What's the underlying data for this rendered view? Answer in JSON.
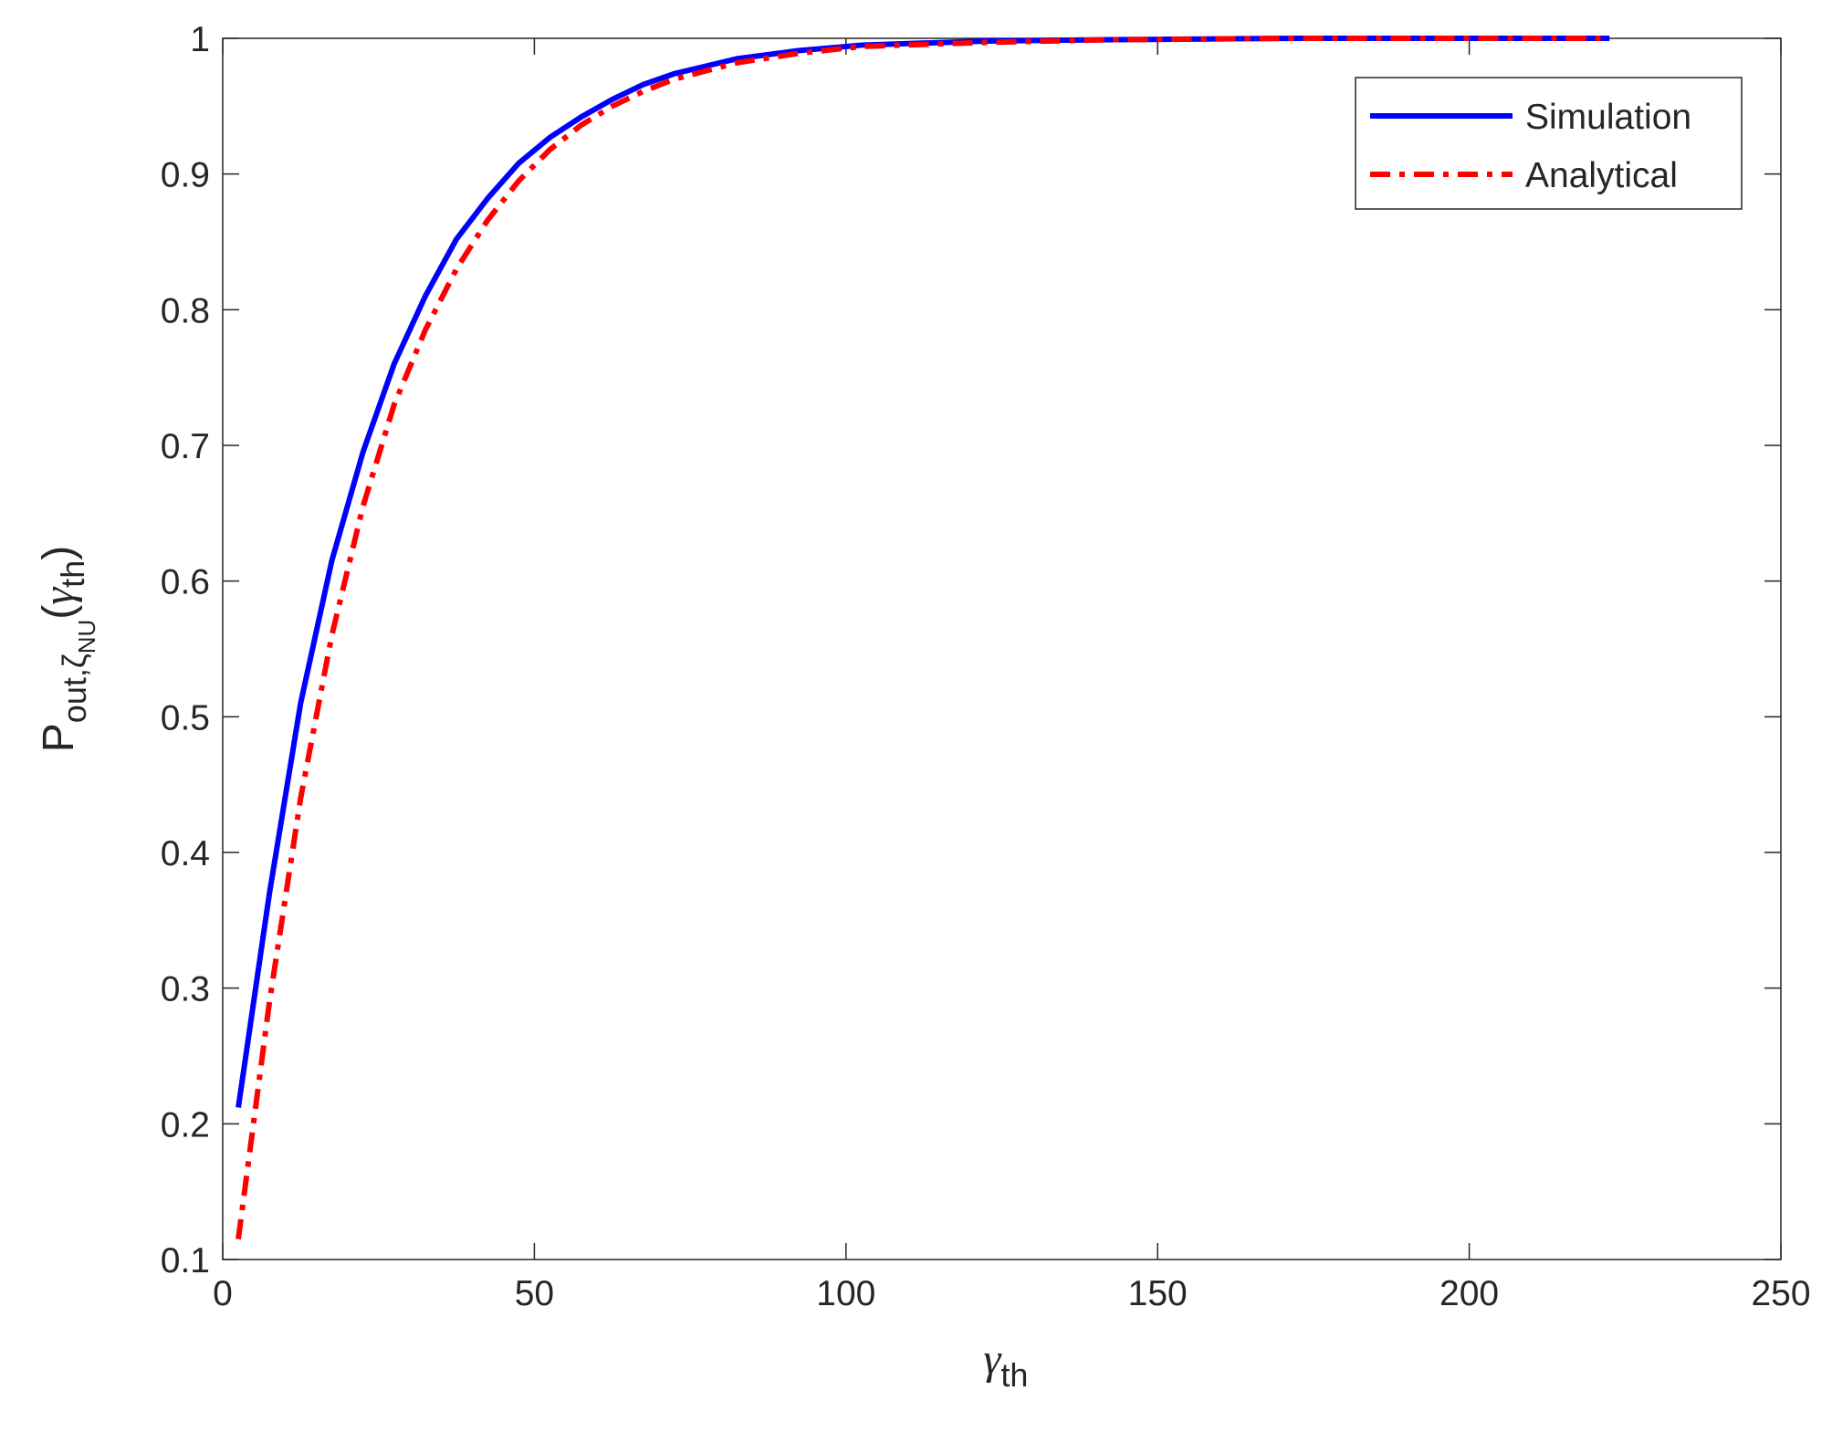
{
  "chart_data": {
    "type": "line",
    "xlabel": [
      "γ",
      "th"
    ],
    "ylabel": [
      "P",
      "out,ζ",
      "NU",
      "(",
      "γ",
      "th",
      ")"
    ],
    "x": [
      2.5,
      7.5,
      12.5,
      17.5,
      22.5,
      27.5,
      32.5,
      37.5,
      42.5,
      47.5,
      52.5,
      57.5,
      62.5,
      67.5,
      72.5,
      82.5,
      92.5,
      102.5,
      122.5,
      142.5,
      172.5,
      222.5
    ],
    "series": [
      {
        "name": "Simulation",
        "color": "#0000ff",
        "dash": "solid",
        "values": [
          0.212,
          0.37,
          0.51,
          0.615,
          0.695,
          0.76,
          0.81,
          0.852,
          0.882,
          0.908,
          0.927,
          0.942,
          0.955,
          0.966,
          0.974,
          0.985,
          0.991,
          0.995,
          0.998,
          0.999,
          1.0,
          1.0
        ]
      },
      {
        "name": "Analytical",
        "color": "#ff0000",
        "dash": "dashdot",
        "values": [
          0.115,
          0.29,
          0.44,
          0.56,
          0.655,
          0.73,
          0.785,
          0.83,
          0.866,
          0.895,
          0.918,
          0.936,
          0.95,
          0.961,
          0.97,
          0.982,
          0.989,
          0.994,
          0.997,
          0.999,
          1.0,
          1.0
        ]
      }
    ],
    "xlim": [
      0,
      250
    ],
    "xticks": [
      0,
      50,
      100,
      150,
      200,
      250
    ],
    "ylim": [
      0.1,
      1
    ],
    "yticks": [
      0.1,
      0.2,
      0.3,
      0.4,
      0.5,
      0.6,
      0.7,
      0.8,
      0.9,
      1
    ],
    "grid": false,
    "legend": "upper right"
  }
}
